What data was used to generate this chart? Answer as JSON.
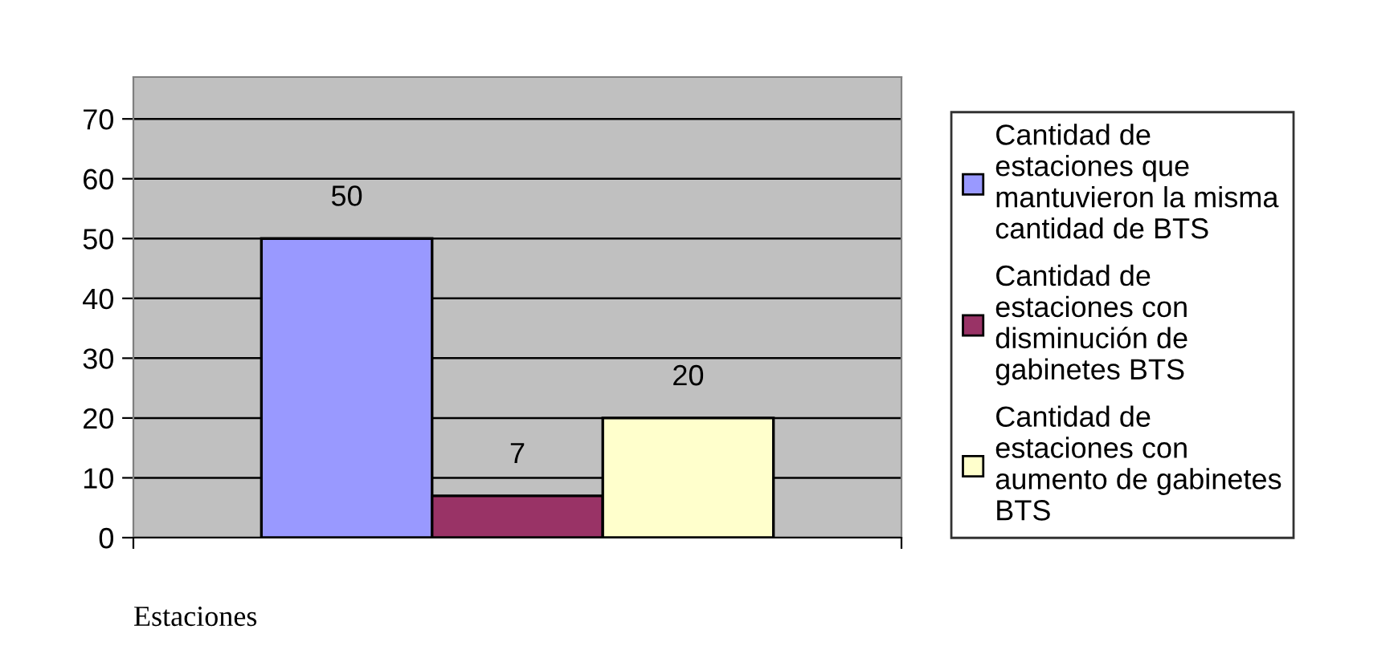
{
  "chart_data": {
    "type": "bar",
    "categories": [
      null
    ],
    "xlabel": "Estaciones",
    "series": [
      {
        "name": "Cantidad de estaciones que mantuvieron la misma cantidad de BTS",
        "color": "#9999ff",
        "values": [
          50
        ]
      },
      {
        "name": "Cantidad de estaciones con disminución de gabinetes BTS",
        "color": "#993366",
        "values": [
          7
        ]
      },
      {
        "name": "Cantidad de estaciones con aumento de gabinetes BTS",
        "color": "#ffffcc",
        "values": [
          20
        ]
      }
    ],
    "ylim": [
      0,
      77
    ],
    "yticks": [
      0,
      10,
      20,
      30,
      40,
      50,
      60,
      70
    ],
    "grid": "y",
    "legend": "right",
    "data_labels": true
  }
}
